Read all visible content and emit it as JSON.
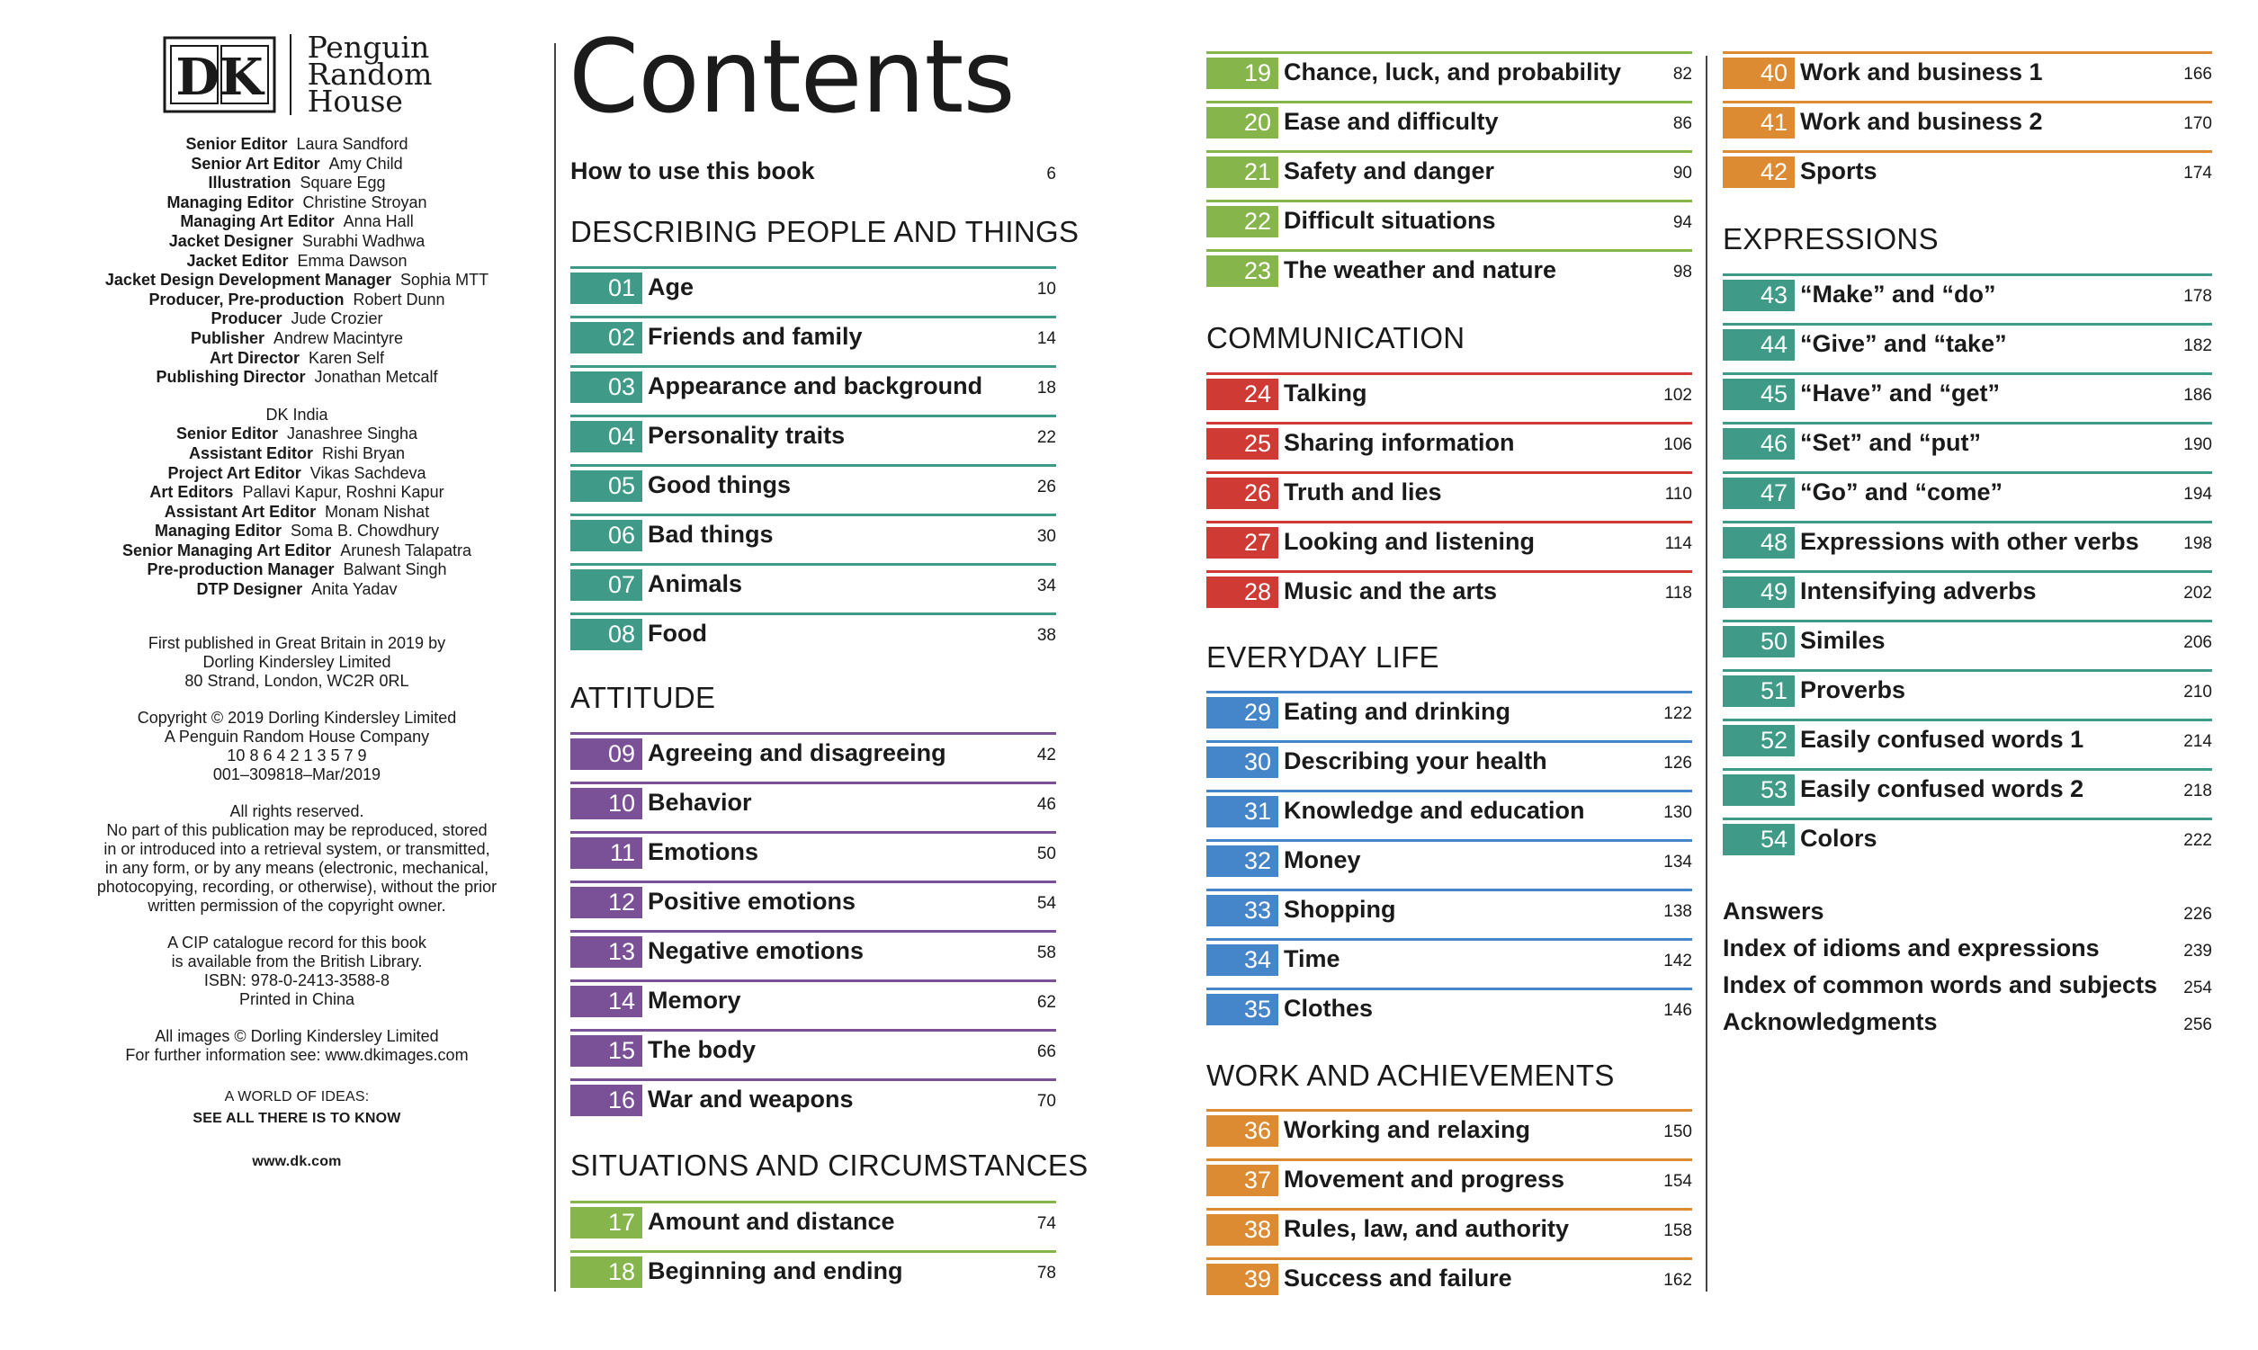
{
  "colors": {
    "teal": "#3f9a87",
    "purple": "#7a5197",
    "green": "#86b54c",
    "red": "#cf3b34",
    "blue": "#4585c9",
    "orange": "#dd8b33"
  },
  "publisher": {
    "logo_letters": "DK",
    "imprint_lines": [
      "Penguin",
      "Random",
      "House"
    ]
  },
  "credits": [
    {
      "role": "Senior Editor",
      "name": "Laura Sandford"
    },
    {
      "role": "Senior Art Editor",
      "name": "Amy Child"
    },
    {
      "role": "Illustration",
      "name": "Square Egg"
    },
    {
      "role": "Managing Editor",
      "name": "Christine Stroyan"
    },
    {
      "role": "Managing Art Editor",
      "name": "Anna Hall"
    },
    {
      "role": "Jacket Designer",
      "name": "Surabhi Wadhwa"
    },
    {
      "role": "Jacket Editor",
      "name": "Emma Dawson"
    },
    {
      "role": "Jacket Design Development Manager",
      "name": "Sophia MTT"
    },
    {
      "role": "Producer, Pre-production",
      "name": "Robert Dunn"
    },
    {
      "role": "Producer",
      "name": "Jude Crozier"
    },
    {
      "role": "Publisher",
      "name": "Andrew Macintyre"
    },
    {
      "role": "Art Director",
      "name": "Karen Self"
    },
    {
      "role": "Publishing Director",
      "name": "Jonathan Metcalf"
    }
  ],
  "india_heading": "DK India",
  "india_credits": [
    {
      "role": "Senior Editor",
      "name": "Janashree Singha"
    },
    {
      "role": "Assistant Editor",
      "name": "Rishi Bryan"
    },
    {
      "role": "Project Art Editor",
      "name": "Vikas Sachdeva"
    },
    {
      "role": "Art Editors",
      "name": "Pallavi Kapur, Roshni Kapur"
    },
    {
      "role": "Assistant Art Editor",
      "name": "Monam Nishat"
    },
    {
      "role": "Managing Editor",
      "name": "Soma B. Chowdhury"
    },
    {
      "role": "Senior Managing Art Editor",
      "name": "Arunesh Talapatra"
    },
    {
      "role": "Pre-production Manager",
      "name": "Balwant Singh"
    },
    {
      "role": "DTP Designer",
      "name": "Anita Yadav"
    }
  ],
  "published": [
    "First published in Great Britain in 2019 by",
    "Dorling Kindersley Limited",
    "80 Strand, London, WC2R 0RL"
  ],
  "copyright": [
    "Copyright © 2019 Dorling Kindersley Limited",
    "A Penguin Random House Company",
    "10 8 6 4 2 1 3 5 7 9",
    "001–309818–Mar/2019"
  ],
  "rights": [
    "All rights reserved.",
    "No part of this publication may be reproduced, stored",
    "in or introduced into a retrieval system, or transmitted,",
    "in any form, or by any means (electronic, mechanical,",
    "photocopying, recording, or otherwise), without the prior",
    "written permission of the copyright owner."
  ],
  "cip": [
    "A CIP catalogue record for this book",
    "is available from the British Library.",
    "ISBN: 978-0-2413-3588-8",
    "Printed in China"
  ],
  "images": [
    "All images © Dorling Kindersley Limited",
    "For further information see: www.dkimages.com"
  ],
  "tagline": [
    "A WORLD OF IDEAS:",
    "SEE ALL THERE IS TO KNOW"
  ],
  "website": "www.dk.com",
  "contents_title": "Contents",
  "how_to_use": {
    "label": "How to use this book",
    "page": "6"
  },
  "sections": [
    {
      "heading": "DESCRIBING PEOPLE AND THINGS",
      "color": "teal",
      "entries": [
        {
          "num": "01",
          "label": "Age",
          "page": "10"
        },
        {
          "num": "02",
          "label": "Friends and family",
          "page": "14"
        },
        {
          "num": "03",
          "label": "Appearance and background",
          "page": "18"
        },
        {
          "num": "04",
          "label": "Personality traits",
          "page": "22"
        },
        {
          "num": "05",
          "label": "Good things",
          "page": "26"
        },
        {
          "num": "06",
          "label": "Bad things",
          "page": "30"
        },
        {
          "num": "07",
          "label": "Animals",
          "page": "34"
        },
        {
          "num": "08",
          "label": "Food",
          "page": "38"
        }
      ]
    },
    {
      "heading": "ATTITUDE",
      "color": "purple",
      "entries": [
        {
          "num": "09",
          "label": "Agreeing and disagreeing",
          "page": "42"
        },
        {
          "num": "10",
          "label": "Behavior",
          "page": "46"
        },
        {
          "num": "11",
          "label": "Emotions",
          "page": "50"
        },
        {
          "num": "12",
          "label": "Positive emotions",
          "page": "54"
        },
        {
          "num": "13",
          "label": "Negative emotions",
          "page": "58"
        },
        {
          "num": "14",
          "label": "Memory",
          "page": "62"
        },
        {
          "num": "15",
          "label": "The body",
          "page": "66"
        },
        {
          "num": "16",
          "label": "War and weapons",
          "page": "70"
        }
      ]
    },
    {
      "heading": "SITUATIONS AND CIRCUMSTANCES",
      "color": "green",
      "entries": [
        {
          "num": "17",
          "label": "Amount and distance",
          "page": "74"
        },
        {
          "num": "18",
          "label": "Beginning and ending",
          "page": "78"
        },
        {
          "num": "19",
          "label": "Chance, luck, and probability",
          "page": "82"
        },
        {
          "num": "20",
          "label": "Ease and difficulty",
          "page": "86"
        },
        {
          "num": "21",
          "label": "Safety and danger",
          "page": "90"
        },
        {
          "num": "22",
          "label": "Difficult situations",
          "page": "94"
        },
        {
          "num": "23",
          "label": "The weather and nature",
          "page": "98"
        }
      ]
    },
    {
      "heading": "COMMUNICATION",
      "color": "red",
      "entries": [
        {
          "num": "24",
          "label": "Talking",
          "page": "102"
        },
        {
          "num": "25",
          "label": "Sharing information",
          "page": "106"
        },
        {
          "num": "26",
          "label": "Truth and lies",
          "page": "110"
        },
        {
          "num": "27",
          "label": "Looking and listening",
          "page": "114"
        },
        {
          "num": "28",
          "label": "Music and the arts",
          "page": "118"
        }
      ]
    },
    {
      "heading": "EVERYDAY LIFE",
      "color": "blue",
      "entries": [
        {
          "num": "29",
          "label": "Eating and drinking",
          "page": "122"
        },
        {
          "num": "30",
          "label": "Describing your health",
          "page": "126"
        },
        {
          "num": "31",
          "label": "Knowledge and education",
          "page": "130"
        },
        {
          "num": "32",
          "label": "Money",
          "page": "134"
        },
        {
          "num": "33",
          "label": "Shopping",
          "page": "138"
        },
        {
          "num": "34",
          "label": "Time",
          "page": "142"
        },
        {
          "num": "35",
          "label": "Clothes",
          "page": "146"
        }
      ]
    },
    {
      "heading": "WORK AND ACHIEVEMENTS",
      "color": "orange",
      "entries": [
        {
          "num": "36",
          "label": "Working and relaxing",
          "page": "150"
        },
        {
          "num": "37",
          "label": "Movement and progress",
          "page": "154"
        },
        {
          "num": "38",
          "label": "Rules, law, and authority",
          "page": "158"
        },
        {
          "num": "39",
          "label": "Success and failure",
          "page": "162"
        },
        {
          "num": "40",
          "label": "Work and business 1",
          "page": "166"
        },
        {
          "num": "41",
          "label": "Work and business 2",
          "page": "170"
        },
        {
          "num": "42",
          "label": "Sports",
          "page": "174"
        }
      ]
    },
    {
      "heading": "EXPRESSIONS",
      "color": "teal",
      "entries": [
        {
          "num": "43",
          "label": "“Make” and “do”",
          "page": "178"
        },
        {
          "num": "44",
          "label": "“Give” and “take”",
          "page": "182"
        },
        {
          "num": "45",
          "label": "“Have” and “get”",
          "page": "186"
        },
        {
          "num": "46",
          "label": "“Set” and “put”",
          "page": "190"
        },
        {
          "num": "47",
          "label": "“Go” and “come”",
          "page": "194"
        },
        {
          "num": "48",
          "label": "Expressions with other verbs",
          "page": "198"
        },
        {
          "num": "49",
          "label": "Intensifying adverbs",
          "page": "202"
        },
        {
          "num": "50",
          "label": "Similes",
          "page": "206"
        },
        {
          "num": "51",
          "label": "Proverbs",
          "page": "210"
        },
        {
          "num": "52",
          "label": "Easily confused words 1",
          "page": "214"
        },
        {
          "num": "53",
          "label": "Easily confused words 2",
          "page": "218"
        },
        {
          "num": "54",
          "label": "Colors",
          "page": "222"
        }
      ]
    }
  ],
  "back_matter": [
    {
      "label": "Answers",
      "page": "226"
    },
    {
      "label": "Index of idioms and expressions",
      "page": "239"
    },
    {
      "label": "Index of common words and subjects",
      "page": "254"
    },
    {
      "label": "Acknowledgments",
      "page": "256"
    }
  ]
}
